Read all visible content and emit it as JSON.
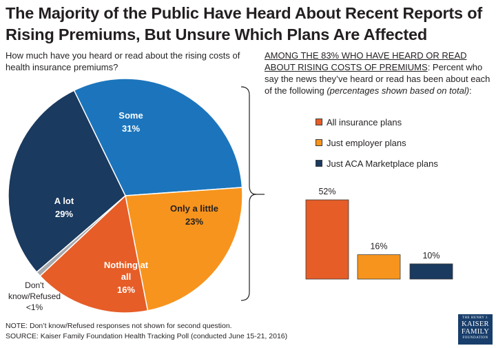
{
  "title": "The Majority of the Public Have Heard About Recent Reports of Rising Premiums, But Unsure Which Plans Are Affected",
  "question": "How much have you heard or read about the rising costs of health insurance premiums?",
  "sub_header": {
    "underlined": "AMONG THE 83% WHO HAVE HEARD OR READ ABOUT RISING COSTS OF PREMIUMS",
    "text": ": Percent who say the news they’ve heard or read has been about each of the following ",
    "italic": "(percentages shown based on total)",
    "end": ":"
  },
  "colors": {
    "some": "#1c75bc",
    "a_lot": "#1a3a5f",
    "only_little": "#f7941d",
    "nothing": "#e65d27",
    "dont_know": "#a7a9ac"
  },
  "chart_data": [
    {
      "type": "pie",
      "slices": [
        {
          "label": "Some",
          "value": 31,
          "value_label": "31%",
          "color": "#1c75bc"
        },
        {
          "label": "Only a little",
          "value": 23,
          "value_label": "23%",
          "color": "#f7941d"
        },
        {
          "label": "Nothing at all",
          "value": 16,
          "value_label": "16%",
          "color": "#e65d27"
        },
        {
          "label": "Don't know/Refused",
          "value": 0.7,
          "value_label": "<1%",
          "color": "#a7a9ac"
        },
        {
          "label": "A lot",
          "value": 29,
          "value_label": "29%",
          "color": "#1a3a5f"
        }
      ]
    },
    {
      "type": "bar",
      "categories": [
        "All insurance plans",
        "Just employer plans",
        "Just ACA Marketplace plans"
      ],
      "values": [
        52,
        16,
        10
      ],
      "value_labels": [
        "52%",
        "16%",
        "10%"
      ],
      "colors": [
        "#e65d27",
        "#f7941d",
        "#1a3a5f"
      ],
      "legend_position": "top"
    }
  ],
  "legend": [
    {
      "label": "All insurance plans",
      "color": "#e65d27"
    },
    {
      "label": "Just employer plans",
      "color": "#f7941d"
    },
    {
      "label": "Just ACA Marketplace plans",
      "color": "#1a3a5f"
    }
  ],
  "note": "NOTE: Don’t know/Refused responses not shown for second question.",
  "source": "SOURCE: Kaiser Family Foundation Health Tracking Poll (conducted June 15-21, 2016)",
  "logo": {
    "line1": "THE HENRY J.",
    "line2": "KAISER",
    "line3": "FAMILY",
    "line4": "FOUNDATION"
  }
}
